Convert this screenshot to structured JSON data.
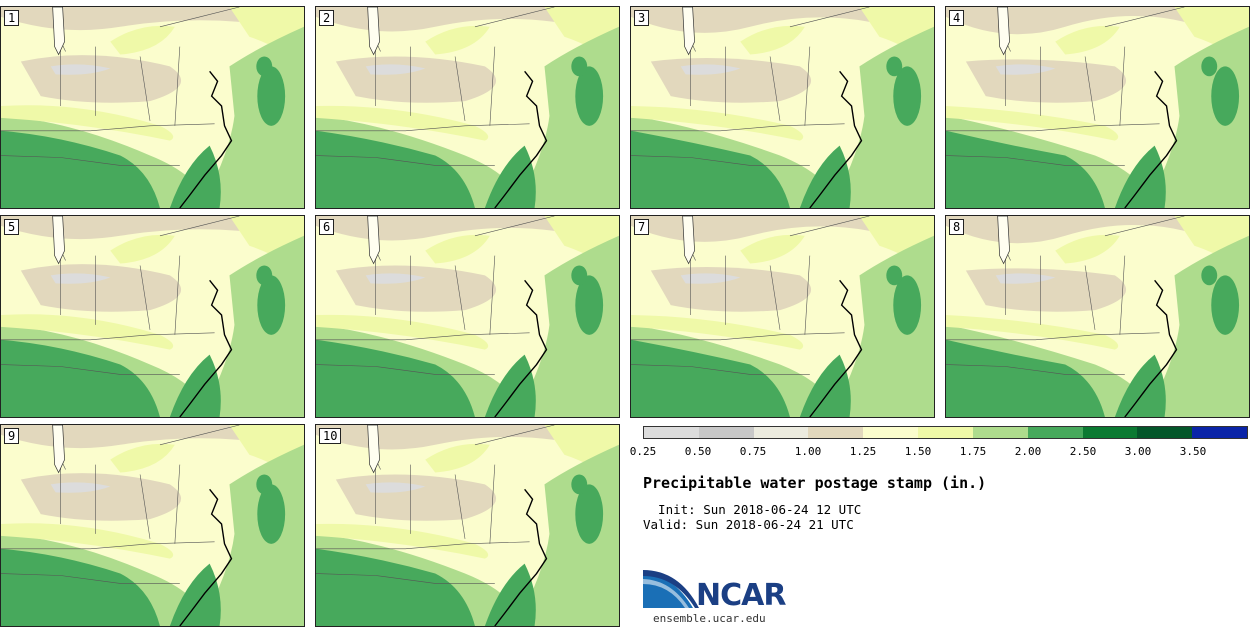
{
  "stamps": [
    {
      "label": "1"
    },
    {
      "label": "2"
    },
    {
      "label": "3"
    },
    {
      "label": "4"
    },
    {
      "label": "5"
    },
    {
      "label": "6"
    },
    {
      "label": "7"
    },
    {
      "label": "8"
    },
    {
      "label": "9"
    },
    {
      "label": "10"
    }
  ],
  "colorbar": {
    "colors": [
      "#dcdcdc",
      "#c8c8c8",
      "#ecebdf",
      "#e2d8bd",
      "#fbfdcd",
      "#eff9a8",
      "#aedc8d",
      "#47a95c",
      "#0b7a32",
      "#04562a",
      "#0a24a8"
    ],
    "ticks": [
      "0.25",
      "0.50",
      "0.75",
      "1.00",
      "1.25",
      "1.50",
      "1.75",
      "2.00",
      "2.50",
      "3.00",
      "3.50"
    ]
  },
  "title": "Precipitable water postage stamp (in.)",
  "init": "  Init: Sun 2018-06-24 12 UTC",
  "valid": "Valid: Sun 2018-06-24 21 UTC",
  "logo": {
    "text": "NCAR",
    "url": "ensemble.ucar.edu"
  }
}
